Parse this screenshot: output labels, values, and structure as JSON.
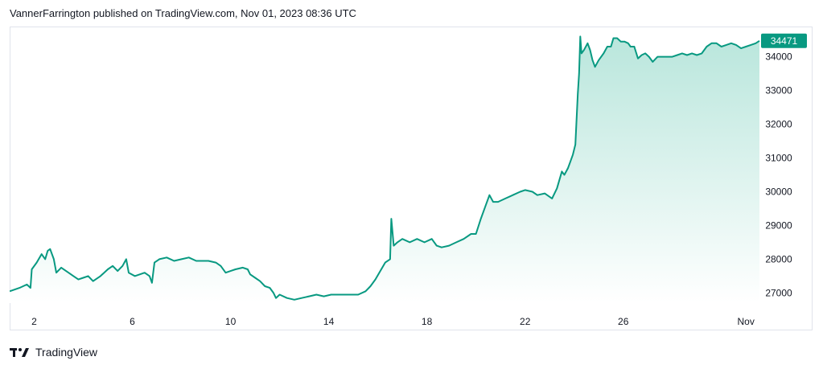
{
  "header": {
    "text": "VannerFarrington published on TradingView.com, Nov 01, 2023 08:36 UTC"
  },
  "brand": {
    "name": "TradingView"
  },
  "colors": {
    "line": "#089981",
    "area_top": "#b9e6dc",
    "area_bottom": "#ffffff",
    "frame": "#e0e3eb",
    "text": "#131722"
  },
  "chart_data": {
    "type": "area",
    "title": "",
    "xlabel": "",
    "ylabel": "",
    "grid": false,
    "ylim": [
      26700,
      34800
    ],
    "xlim": [
      1,
      31.55
    ],
    "x_ticks": [
      {
        "label": "2",
        "x": 2
      },
      {
        "label": "6",
        "x": 6
      },
      {
        "label": "10",
        "x": 10
      },
      {
        "label": "14",
        "x": 14
      },
      {
        "label": "18",
        "x": 18
      },
      {
        "label": "22",
        "x": 22
      },
      {
        "label": "26",
        "x": 26
      },
      {
        "label": "Nov",
        "x": 31
      }
    ],
    "y_ticks": [
      27000,
      28000,
      29000,
      30000,
      31000,
      32000,
      33000,
      34000
    ],
    "last_value": 34471,
    "series": [
      {
        "points": [
          [
            1.0,
            27050
          ],
          [
            1.4,
            27150
          ],
          [
            1.7,
            27250
          ],
          [
            1.85,
            27150
          ],
          [
            1.9,
            27700
          ],
          [
            2.1,
            27900
          ],
          [
            2.3,
            28150
          ],
          [
            2.45,
            28000
          ],
          [
            2.55,
            28250
          ],
          [
            2.65,
            28300
          ],
          [
            2.8,
            28000
          ],
          [
            2.9,
            27600
          ],
          [
            3.1,
            27750
          ],
          [
            3.4,
            27600
          ],
          [
            3.6,
            27500
          ],
          [
            3.8,
            27400
          ],
          [
            4.0,
            27450
          ],
          [
            4.2,
            27500
          ],
          [
            4.4,
            27350
          ],
          [
            4.7,
            27500
          ],
          [
            5.0,
            27700
          ],
          [
            5.2,
            27800
          ],
          [
            5.4,
            27650
          ],
          [
            5.6,
            27800
          ],
          [
            5.75,
            28000
          ],
          [
            5.85,
            27600
          ],
          [
            6.1,
            27500
          ],
          [
            6.5,
            27600
          ],
          [
            6.7,
            27500
          ],
          [
            6.8,
            27300
          ],
          [
            6.9,
            27900
          ],
          [
            7.1,
            28000
          ],
          [
            7.4,
            28050
          ],
          [
            7.7,
            27950
          ],
          [
            8.0,
            28000
          ],
          [
            8.3,
            28050
          ],
          [
            8.6,
            27950
          ],
          [
            8.9,
            27950
          ],
          [
            9.1,
            27950
          ],
          [
            9.4,
            27900
          ],
          [
            9.6,
            27800
          ],
          [
            9.8,
            27600
          ],
          [
            10.0,
            27650
          ],
          [
            10.2,
            27700
          ],
          [
            10.5,
            27750
          ],
          [
            10.7,
            27700
          ],
          [
            10.8,
            27550
          ],
          [
            11.0,
            27450
          ],
          [
            11.2,
            27350
          ],
          [
            11.4,
            27200
          ],
          [
            11.6,
            27150
          ],
          [
            11.75,
            27000
          ],
          [
            11.85,
            26850
          ],
          [
            12.0,
            26950
          ],
          [
            12.3,
            26850
          ],
          [
            12.6,
            26800
          ],
          [
            12.9,
            26850
          ],
          [
            13.2,
            26900
          ],
          [
            13.5,
            26950
          ],
          [
            13.8,
            26900
          ],
          [
            14.1,
            26950
          ],
          [
            14.5,
            26950
          ],
          [
            14.9,
            26950
          ],
          [
            15.2,
            26950
          ],
          [
            15.5,
            27050
          ],
          [
            15.7,
            27200
          ],
          [
            15.9,
            27400
          ],
          [
            16.1,
            27650
          ],
          [
            16.3,
            27900
          ],
          [
            16.5,
            28000
          ],
          [
            16.55,
            29200
          ],
          [
            16.65,
            28400
          ],
          [
            16.8,
            28500
          ],
          [
            17.0,
            28600
          ],
          [
            17.3,
            28500
          ],
          [
            17.6,
            28600
          ],
          [
            17.9,
            28500
          ],
          [
            18.2,
            28600
          ],
          [
            18.4,
            28400
          ],
          [
            18.6,
            28350
          ],
          [
            18.9,
            28400
          ],
          [
            19.2,
            28500
          ],
          [
            19.5,
            28600
          ],
          [
            19.8,
            28750
          ],
          [
            20.0,
            28750
          ],
          [
            20.2,
            29200
          ],
          [
            20.4,
            29600
          ],
          [
            20.55,
            29900
          ],
          [
            20.7,
            29700
          ],
          [
            20.9,
            29700
          ],
          [
            21.2,
            29800
          ],
          [
            21.5,
            29900
          ],
          [
            21.8,
            30000
          ],
          [
            22.0,
            30050
          ],
          [
            22.3,
            30000
          ],
          [
            22.5,
            29900
          ],
          [
            22.8,
            29950
          ],
          [
            23.1,
            29800
          ],
          [
            23.3,
            30100
          ],
          [
            23.5,
            30600
          ],
          [
            23.6,
            30500
          ],
          [
            23.75,
            30700
          ],
          [
            23.85,
            30900
          ],
          [
            23.95,
            31100
          ],
          [
            24.05,
            31400
          ],
          [
            24.15,
            32900
          ],
          [
            24.2,
            33500
          ],
          [
            24.25,
            34600
          ],
          [
            24.3,
            34100
          ],
          [
            24.4,
            34200
          ],
          [
            24.55,
            34400
          ],
          [
            24.65,
            34200
          ],
          [
            24.75,
            33900
          ],
          [
            24.85,
            33700
          ],
          [
            25.0,
            33900
          ],
          [
            25.2,
            34100
          ],
          [
            25.35,
            34300
          ],
          [
            25.5,
            34300
          ],
          [
            25.6,
            34550
          ],
          [
            25.75,
            34550
          ],
          [
            25.9,
            34450
          ],
          [
            26.05,
            34450
          ],
          [
            26.2,
            34400
          ],
          [
            26.3,
            34300
          ],
          [
            26.45,
            34300
          ],
          [
            26.6,
            33950
          ],
          [
            26.75,
            34050
          ],
          [
            26.9,
            34100
          ],
          [
            27.05,
            34000
          ],
          [
            27.2,
            33850
          ],
          [
            27.4,
            34000
          ],
          [
            27.6,
            34000
          ],
          [
            27.8,
            34000
          ],
          [
            28.0,
            34000
          ],
          [
            28.2,
            34050
          ],
          [
            28.4,
            34100
          ],
          [
            28.6,
            34050
          ],
          [
            28.8,
            34100
          ],
          [
            29.0,
            34050
          ],
          [
            29.2,
            34100
          ],
          [
            29.4,
            34300
          ],
          [
            29.6,
            34400
          ],
          [
            29.8,
            34400
          ],
          [
            30.0,
            34300
          ],
          [
            30.2,
            34350
          ],
          [
            30.4,
            34400
          ],
          [
            30.6,
            34350
          ],
          [
            30.8,
            34250
          ],
          [
            31.0,
            34300
          ],
          [
            31.2,
            34350
          ],
          [
            31.4,
            34400
          ],
          [
            31.55,
            34471
          ]
        ]
      }
    ]
  }
}
